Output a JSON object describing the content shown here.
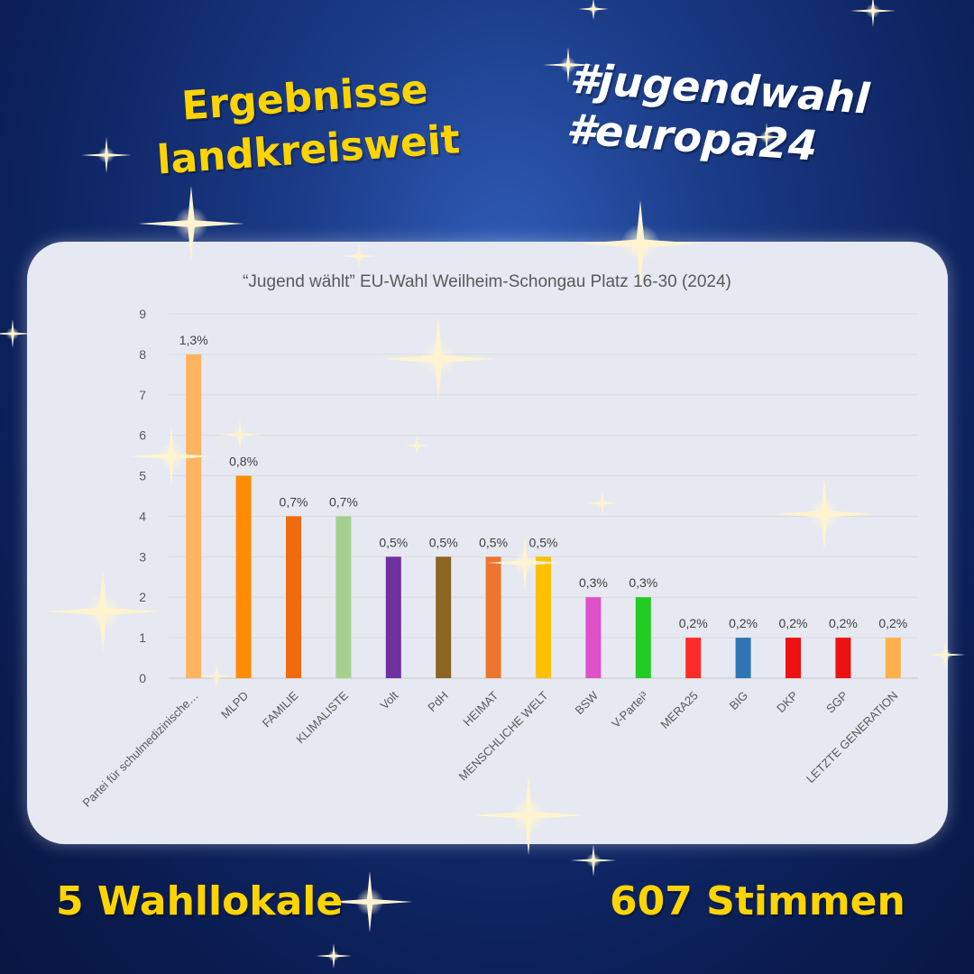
{
  "header": {
    "title_line1": "Ergebnisse",
    "title_line2": "landkreisweit",
    "tag1": "#jugendwahl",
    "tag2": "#europa24"
  },
  "footer": {
    "locations": "5 Wahllokale",
    "votes": "607 Stimmen"
  },
  "colors": {
    "background": "#10296a",
    "headline": "#ffd400",
    "panel": "#e6e9f1"
  },
  "chart_data": {
    "type": "bar",
    "title": "“Jugend wählt” EU-Wahl Weilheim-Schongau Platz 16-30 (2024)",
    "xlabel": "",
    "ylabel": "",
    "ylim": [
      0,
      9
    ],
    "yticks": [
      "0",
      "1",
      "2",
      "3",
      "4",
      "5",
      "6",
      "7",
      "8",
      "9"
    ],
    "grid": true,
    "categories": [
      "Partei für schulmedizinische…",
      "MLPD",
      "FAMILIE",
      "KLIMALISTE",
      "Volt",
      "PdH",
      "HEIMAT",
      "MENSCHLICHE WELT",
      "BSW",
      "V-Partei³",
      "MERA25",
      "BIG",
      "DKP",
      "SGP",
      "LETZTE GENERATION"
    ],
    "values": [
      8,
      5,
      4,
      4,
      3,
      3,
      3,
      3,
      2,
      2,
      1,
      1,
      1,
      1,
      1
    ],
    "labels": [
      "1,3%",
      "0,8%",
      "0,7%",
      "0,7%",
      "0,5%",
      "0,5%",
      "0,5%",
      "0,5%",
      "0,3%",
      "0,3%",
      "0,2%",
      "0,2%",
      "0,2%",
      "0,2%",
      "0,2%"
    ],
    "bar_colors": [
      "#ffb45f",
      "#ff8c00",
      "#f06a10",
      "#a3d08e",
      "#7030a0",
      "#8b6521",
      "#ee7530",
      "#ffc000",
      "#e050c8",
      "#22cc22",
      "#ff2a2a",
      "#2e75b6",
      "#ee1111",
      "#ee1111",
      "#ffb04a"
    ]
  }
}
